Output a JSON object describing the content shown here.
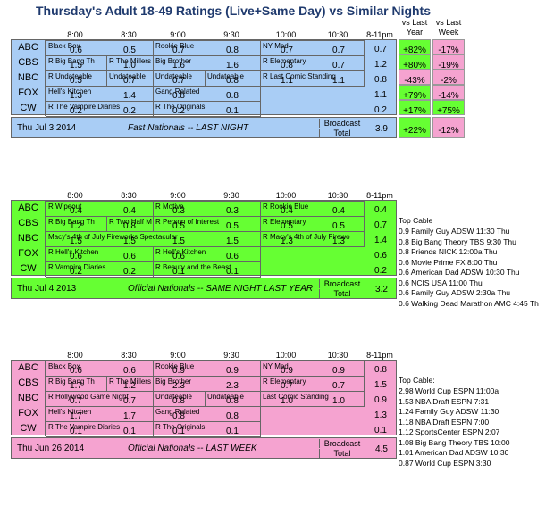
{
  "title": "Thursday's Adult 18-49 Ratings (Live+Same Day) vs Similar Nights",
  "time_headers": [
    "8:00",
    "8:30",
    "9:00",
    "9:30",
    "10:00",
    "10:30",
    "8-11pm"
  ],
  "vs_headers": [
    "vs Last Year",
    "vs Last Week"
  ],
  "networks": [
    "ABC",
    "CBS",
    "NBC",
    "FOX",
    "CW"
  ],
  "colors": {
    "blue": "#a9cdf5",
    "green": "#66ff33",
    "pink": "#f5a3d0",
    "pos": "#66ff33",
    "neg": "#f5a3d0"
  },
  "top": {
    "rows": [
      {
        "shows": [
          [
            "Black Box",
            0,
            2
          ],
          [
            "Rookie Blue",
            2,
            4
          ],
          [
            "NY Med",
            4,
            6
          ]
        ],
        "vals": [
          "0.6",
          "0.5",
          "0.7",
          "0.8",
          "0.7",
          "0.7"
        ],
        "total": "0.7",
        "yr": "+82%",
        "wk": "-17%"
      },
      {
        "shows": [
          [
            "R Big Bang Th",
            0,
            1
          ],
          [
            "R The Millers",
            1,
            2
          ],
          [
            "Big Brother",
            2,
            4
          ],
          [
            "R Elementary",
            4,
            6
          ]
        ],
        "vals": [
          "1.5",
          "1.0",
          "1.6",
          "1.6",
          "0.8",
          "0.7"
        ],
        "total": "1.2",
        "yr": "+80%",
        "wk": "-19%"
      },
      {
        "shows": [
          [
            "R Undateable",
            0,
            1
          ],
          [
            "Undateable",
            1,
            2
          ],
          [
            "Undateable",
            2,
            3
          ],
          [
            "Undateable",
            3,
            4
          ],
          [
            "R Last Comic Standing",
            4,
            6
          ]
        ],
        "vals": [
          "0.5",
          "0.7",
          "0.7",
          "0.8",
          "1.1",
          "1.1"
        ],
        "total": "0.8",
        "yr": "-43%",
        "wk": "-2%"
      },
      {
        "shows": [
          [
            "Hell's Kitchen",
            0,
            2
          ],
          [
            "Gang Related",
            2,
            4
          ]
        ],
        "vals": [
          "1.3",
          "1.4",
          "0.8",
          "0.8",
          "",
          ""
        ],
        "total": "1.1",
        "yr": "+79%",
        "wk": "-14%"
      },
      {
        "shows": [
          [
            "R The Vampire Diaries",
            0,
            2
          ],
          [
            "R The Originals",
            2,
            4
          ]
        ],
        "vals": [
          "0.2",
          "0.2",
          "0.2",
          "0.1",
          "",
          ""
        ],
        "total": "0.2",
        "yr": "+17%",
        "wk": "+75%"
      }
    ],
    "footer_date": "Thu Jul 3 2014",
    "footer_label": "Fast Nationals -- LAST NIGHT",
    "broadcast": "Broadcast",
    "total_label": "Total",
    "footer_total": "3.9",
    "footer_yr": "+22%",
    "footer_wk": "-12%"
  },
  "middle": {
    "rows": [
      {
        "shows": [
          [
            "R Wipeout",
            0,
            2
          ],
          [
            "R Motive",
            2,
            4
          ],
          [
            "R Rookie Blue",
            4,
            6
          ]
        ],
        "vals": [
          "0.4",
          "0.4",
          "0.3",
          "0.3",
          "0.4",
          "0.4"
        ],
        "total": "0.4"
      },
      {
        "shows": [
          [
            "R Big Bang Th",
            0,
            1
          ],
          [
            "R Two Half M",
            1,
            2
          ],
          [
            "R Person of Interest",
            2,
            4
          ],
          [
            "R Elementary",
            4,
            6
          ]
        ],
        "vals": [
          "1.2",
          "0.8",
          "0.5",
          "0.5",
          "0.5",
          "0.5"
        ],
        "total": "0.7"
      },
      {
        "shows": [
          [
            "Macy's 4th of July Fireworks Spectacular",
            0,
            4
          ],
          [
            "R Macy's 4th of July Firewo",
            4,
            6
          ]
        ],
        "vals": [
          "1.5",
          "1.5",
          "1.5",
          "1.5",
          "1.3",
          "1.3"
        ],
        "total": "1.4"
      },
      {
        "shows": [
          [
            "R Hell's Kitchen",
            0,
            2
          ],
          [
            "R Hell's Kitchen",
            2,
            4
          ]
        ],
        "vals": [
          "0.6",
          "0.6",
          "0.6",
          "0.6",
          "",
          ""
        ],
        "total": "0.6"
      },
      {
        "shows": [
          [
            "R Vampire Diaries",
            0,
            2
          ],
          [
            "R Beauty and the Beast",
            2,
            4
          ]
        ],
        "vals": [
          "0.2",
          "0.2",
          "0.1",
          "0.1",
          "",
          ""
        ],
        "total": "0.2"
      }
    ],
    "footer_date": "Thu Jul 4 2013",
    "footer_label": "Official Nationals -- SAME NIGHT LAST YEAR",
    "broadcast": "Broadcast",
    "total_label": "Total",
    "footer_total": "3.2",
    "side_title": "Top Cable",
    "side": [
      "0.9 Family Guy ADSW 11:30 Thu",
      "0.8 Big Bang Theory TBS 9:30 Thu",
      "0.8 Friends NICK 12:00a Thu",
      "0.6 Movie Prime FX 8:00 Thu",
      "0.6 American Dad ADSW 10:30 Thu",
      "0.6 NCIS USA 11:00 Thu",
      "0.6 Family Guy ADSW 2:30a Thu",
      "0.6 Walking Dead Marathon AMC 4:45 Th"
    ]
  },
  "bottom": {
    "rows": [
      {
        "shows": [
          [
            "Black Box",
            0,
            2
          ],
          [
            "Rookie Blue",
            2,
            4
          ],
          [
            "NY Med",
            4,
            6
          ]
        ],
        "vals": [
          "0.6",
          "0.6",
          "0.9",
          "0.9",
          "0.9",
          "0.9"
        ],
        "total": "0.8"
      },
      {
        "shows": [
          [
            "R Big Bang Th",
            0,
            1
          ],
          [
            "R The Millers",
            1,
            2
          ],
          [
            "Big Brother",
            2,
            4
          ],
          [
            "R Elementary",
            4,
            6
          ]
        ],
        "vals": [
          "1.7",
          "1.2",
          "2.3",
          "2.3",
          "0.7",
          "0.7"
        ],
        "total": "1.5"
      },
      {
        "shows": [
          [
            "R Hollywood Game Night",
            0,
            2
          ],
          [
            "Undateable",
            2,
            3
          ],
          [
            "Undateable",
            3,
            4
          ],
          [
            "Last Comic Standing",
            4,
            6
          ]
        ],
        "vals": [
          "0.7",
          "0.7",
          "0.8",
          "0.8",
          "1.0",
          "1.0"
        ],
        "total": "0.9"
      },
      {
        "shows": [
          [
            "Hell's Kitchen",
            0,
            2
          ],
          [
            "Gang Related",
            2,
            4
          ]
        ],
        "vals": [
          "1.7",
          "1.7",
          "0.8",
          "0.8",
          "",
          ""
        ],
        "total": "1.3"
      },
      {
        "shows": [
          [
            "R The Vampire Diaries",
            0,
            2
          ],
          [
            "R The Originals",
            2,
            4
          ]
        ],
        "vals": [
          "0.1",
          "0.1",
          "0.1",
          "0.1",
          "",
          ""
        ],
        "total": "0.1"
      }
    ],
    "footer_date": "Thu Jun 26 2014",
    "footer_label": "Official Nationals -- LAST WEEK",
    "broadcast": "Broadcast",
    "total_label": "Total",
    "footer_total": "4.5",
    "side_title": "Top Cable:",
    "side": [
      "2.98 World Cup ESPN 11:00a",
      "1.53 NBA Draft ESPN 7:31",
      "1.24 Family Guy ADSW 11:30",
      "1.18 NBA Draft ESPN 7:00",
      "1.12 SportsCenter ESPN 2:07",
      "1.08 Big Bang Theory TBS 10:00",
      "1.01 American Dad ADSW 10:30",
      "0.87 World Cup ESPN 3:30"
    ]
  }
}
